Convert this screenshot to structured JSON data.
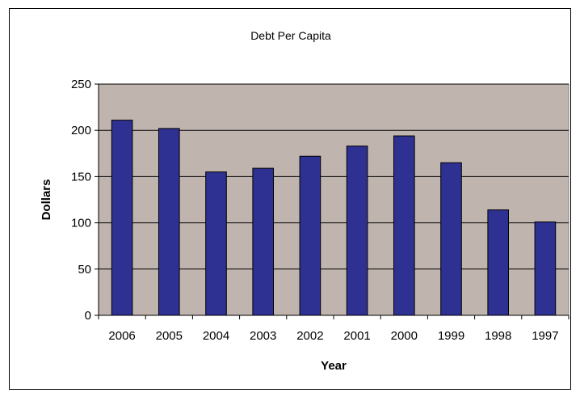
{
  "chart_data": {
    "type": "bar",
    "title": "Debt Per Capita",
    "xlabel": "Year",
    "ylabel": "Dollars",
    "categories": [
      "2006",
      "2005",
      "2004",
      "2003",
      "2002",
      "2001",
      "2000",
      "1999",
      "1998",
      "1997"
    ],
    "values": [
      211,
      202,
      155,
      159,
      172,
      183,
      194,
      165,
      114,
      101
    ],
    "ylim": [
      0,
      250
    ],
    "yticks": [
      0,
      50,
      100,
      150,
      200,
      250
    ],
    "grid": true,
    "legend": "none",
    "colors": {
      "bar": "#2e3192",
      "plot_background": "#c0b4ae",
      "gridline": "#000000"
    }
  }
}
